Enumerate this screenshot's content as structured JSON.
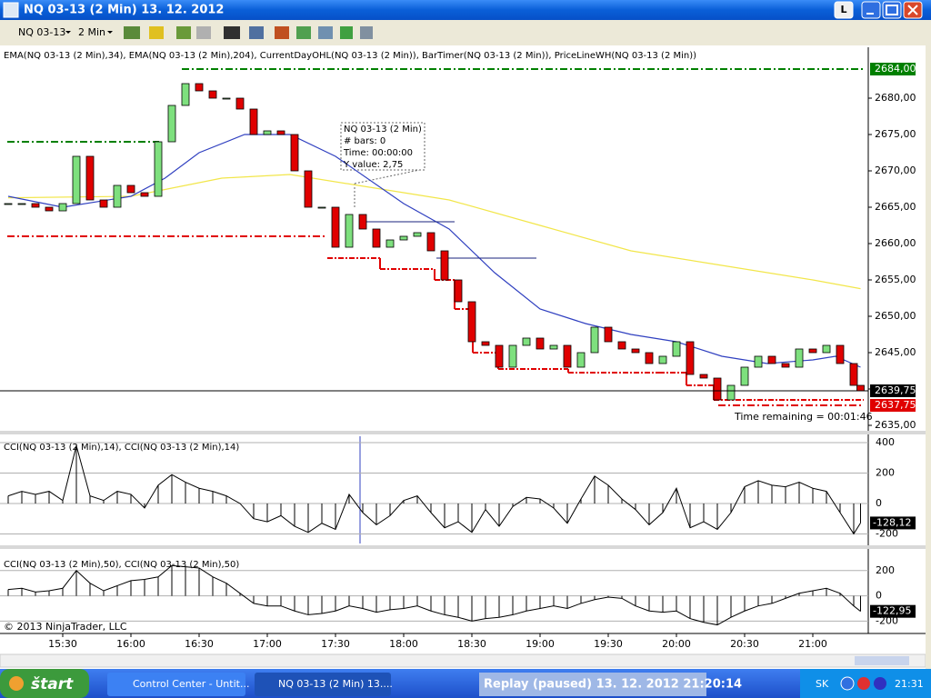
{
  "window": {
    "title": "NQ 03-13 (2 Min)  13. 12. 2012",
    "button": "L"
  },
  "toolbar": {
    "instrument": "NQ 03-13",
    "interval": "2 Min"
  },
  "chart_data": [
    {
      "type": "candlestick",
      "title": "EMA(NQ 03-13 (2 Min),34), EMA(NQ 03-13 (2 Min),204), CurrentDayOHL(NQ 03-13 (2 Min)), BarTimer(NQ 03-13 (2 Min)), PriceLineWH(NQ 03-13 (2 Min))",
      "xlim": [
        905.6,
        1283.2
      ],
      "ylim": [
        2634.25,
        2687
      ],
      "yticks": [
        {
          "value": 2635,
          "label": "2635,00"
        },
        {
          "value": 2640,
          "label": "2640,00"
        },
        {
          "value": 2645,
          "label": "2645,00"
        },
        {
          "value": 2650,
          "label": "2650,00"
        },
        {
          "value": 2655,
          "label": "2655,00"
        },
        {
          "value": 2660,
          "label": "2660,00"
        },
        {
          "value": 2665,
          "label": "2665,00"
        },
        {
          "value": 2670,
          "label": "2670,00"
        },
        {
          "value": 2675,
          "label": "2675,00"
        },
        {
          "value": 2680,
          "label": "2680,00"
        }
      ],
      "x": [
        906,
        912,
        918,
        924,
        930,
        936,
        942,
        948,
        954,
        960,
        966,
        972,
        978,
        984,
        990,
        996,
        1002,
        1008,
        1014,
        1020,
        1026,
        1032,
        1038,
        1044,
        1050,
        1056,
        1062,
        1068,
        1074,
        1080,
        1086,
        1092,
        1098,
        1104,
        1110,
        1116,
        1122,
        1128,
        1134,
        1140,
        1146,
        1152,
        1158,
        1164,
        1170,
        1176,
        1182,
        1188,
        1194,
        1200,
        1206,
        1212,
        1218,
        1224,
        1230,
        1236,
        1242,
        1248,
        1254,
        1260,
        1266,
        1272,
        1278,
        1281
      ],
      "values": [
        2665.5,
        2665.5,
        2665,
        2664.5,
        2665.5,
        2672,
        2666,
        2665,
        2668,
        2667,
        2666.5,
        2674,
        2679,
        2682,
        2681,
        2680,
        2680,
        2678.5,
        2675,
        2675.5,
        2675,
        2670,
        2665,
        2665,
        2659.5,
        2664,
        2662,
        2659.5,
        2660.5,
        2661,
        2661.5,
        2659,
        2655,
        2652,
        2646.5,
        2646,
        2643,
        2646,
        2647,
        2645.5,
        2646,
        2643,
        2645,
        2648.5,
        2646.5,
        2645.5,
        2645,
        2643.5,
        2644.5,
        2646.5,
        2642,
        2641.5,
        2638.5,
        2640.5,
        2643,
        2644.5,
        2643.5,
        2643,
        2645.5,
        2645,
        2646,
        2643.5,
        2640.5,
        2639.75
      ],
      "last_label": "2639,75",
      "up_color": "#7ee07e",
      "down_color": "#e00000",
      "lines": [
        {
          "color": "#f2e64a",
          "x": [
            906,
            960,
            1000,
            1030,
            1060,
            1100,
            1140,
            1180,
            1220,
            1260,
            1281
          ],
          "values": [
            2666.3,
            2666.5,
            2669,
            2669.5,
            2668,
            2666,
            2662.5,
            2659,
            2657,
            2655,
            2653.8
          ]
        },
        {
          "color": "#3040c0",
          "x": [
            906,
            930,
            960,
            975,
            990,
            1010,
            1030,
            1050,
            1080,
            1100,
            1120,
            1140,
            1160,
            1180,
            1200,
            1220,
            1240,
            1260,
            1270,
            1281
          ],
          "values": [
            2666.5,
            2665,
            2666.5,
            2669,
            2672.5,
            2675,
            2675,
            2672,
            2665.5,
            2662,
            2656,
            2651,
            2649,
            2647.5,
            2646.5,
            2644.5,
            2643.5,
            2644,
            2644.5,
            2643
          ]
        }
      ],
      "levels": [
        {
          "x": [
            982.4,
            1283.2
          ],
          "value": 2684,
          "label": "2684,00",
          "color": "#008000"
        },
        {
          "x": [
            905.6,
            972.4
          ],
          "value": 2674,
          "color": "#008000"
        },
        {
          "x": [
            905.6,
            1046.4
          ],
          "value": 2661,
          "color": "#e00000"
        },
        {
          "x": [
            1218.4,
            1282.4
          ],
          "value": 2637.75,
          "label": "2637,75",
          "color": "#e00000"
        }
      ],
      "lows": {
        "color": "#e00000",
        "x": [
          1046.4,
          1069.6,
          1093.6,
          1102.4,
          1110.4,
          1121.6,
          1152.4,
          1192.4,
          1204.4,
          1216.4,
          1282.4
        ],
        "values": [
          2658,
          2656.5,
          2655,
          2651,
          2645,
          2642.75,
          2642.25,
          2642.25,
          2640.5,
          2638.5,
          2638.5
        ]
      },
      "price_lines": [
        {
          "x": [
            1062.4,
            1102.4
          ],
          "value": 2663
        },
        {
          "x": [
            1094.4,
            1138.4
          ],
          "value": 2658
        }
      ],
      "timer": "Time remaining = 00:01:46",
      "tooltip": [
        "NQ 03-13 (2 Min)",
        "# bars:   0",
        "Time:     00:00:00",
        "Y value: 2,75"
      ]
    },
    {
      "type": "cci",
      "title": "CCI(NQ 03-13 (2 Min),14), CCI(NQ 03-13 (2 Min),14)",
      "xlim": [
        905.6,
        1283.2
      ],
      "ylim": [
        -275,
        454
      ],
      "yticks": [
        400,
        200,
        0,
        -200
      ],
      "x": [
        906,
        912,
        918,
        924,
        930,
        936,
        942,
        948,
        954,
        960,
        966,
        972,
        978,
        984,
        990,
        996,
        1002,
        1008,
        1014,
        1020,
        1026,
        1032,
        1038,
        1044,
        1050,
        1056,
        1062,
        1068,
        1074,
        1080,
        1086,
        1092,
        1098,
        1104,
        1110,
        1116,
        1122,
        1128,
        1134,
        1140,
        1146,
        1152,
        1158,
        1164,
        1170,
        1176,
        1182,
        1188,
        1194,
        1200,
        1206,
        1212,
        1218,
        1224,
        1230,
        1236,
        1242,
        1248,
        1254,
        1260,
        1266,
        1272,
        1278,
        1281
      ],
      "values": [
        50,
        80,
        60,
        80,
        20,
        380,
        50,
        20,
        80,
        60,
        -30,
        120,
        190,
        140,
        100,
        80,
        50,
        0,
        -100,
        -120,
        -80,
        -150,
        -190,
        -130,
        -170,
        60,
        -60,
        -140,
        -80,
        20,
        50,
        -60,
        -160,
        -120,
        -190,
        -40,
        -150,
        -20,
        40,
        30,
        -30,
        -130,
        30,
        180,
        120,
        30,
        -40,
        -140,
        -60,
        100,
        -160,
        -120,
        -170,
        -60,
        110,
        150,
        120,
        110,
        140,
        100,
        80,
        -60,
        -200,
        -128.12
      ],
      "last_label": "-128,12",
      "color": "#000000"
    },
    {
      "type": "cci",
      "title": "CCI(NQ 03-13 (2 Min),50), CCI(NQ 03-13 (2 Min),50)",
      "xlim": [
        905.6,
        1283.2
      ],
      "ylim": [
        -298,
        371
      ],
      "yticks": [
        200,
        0,
        -200
      ],
      "x": [
        906,
        912,
        918,
        924,
        930,
        936,
        942,
        948,
        954,
        960,
        966,
        972,
        978,
        984,
        990,
        996,
        1002,
        1008,
        1014,
        1020,
        1026,
        1032,
        1038,
        1044,
        1050,
        1056,
        1062,
        1068,
        1074,
        1080,
        1086,
        1092,
        1098,
        1104,
        1110,
        1116,
        1122,
        1128,
        1134,
        1140,
        1146,
        1152,
        1158,
        1164,
        1170,
        1176,
        1182,
        1188,
        1194,
        1200,
        1206,
        1212,
        1218,
        1224,
        1230,
        1236,
        1242,
        1248,
        1254,
        1260,
        1266,
        1272,
        1278,
        1281
      ],
      "values": [
        50,
        60,
        30,
        40,
        60,
        200,
        100,
        40,
        80,
        120,
        130,
        150,
        240,
        230,
        220,
        150,
        100,
        20,
        -60,
        -80,
        -80,
        -120,
        -150,
        -140,
        -120,
        -80,
        -100,
        -130,
        -110,
        -100,
        -80,
        -120,
        -150,
        -170,
        -200,
        -180,
        -170,
        -150,
        -120,
        -100,
        -80,
        -100,
        -60,
        -30,
        -10,
        -20,
        -80,
        -120,
        -130,
        -120,
        -180,
        -210,
        -230,
        -170,
        -120,
        -80,
        -60,
        -20,
        20,
        40,
        60,
        20,
        -80,
        -122.95
      ],
      "last_label": "-122,95",
      "color": "#000000",
      "copyright": "© 2013 NinjaTrader, LLC",
      "xticks": [
        {
          "value": 930,
          "label": "15:30"
        },
        {
          "value": 960,
          "label": "16:00"
        },
        {
          "value": 990,
          "label": "16:30"
        },
        {
          "value": 1020,
          "label": "17:00"
        },
        {
          "value": 1050,
          "label": "17:30"
        },
        {
          "value": 1080,
          "label": "18:00"
        },
        {
          "value": 1110,
          "label": "18:30"
        },
        {
          "value": 1140,
          "label": "19:00"
        },
        {
          "value": 1170,
          "label": "19:30"
        },
        {
          "value": 1200,
          "label": "20:00"
        },
        {
          "value": 1230,
          "label": "20:30"
        },
        {
          "value": 1260,
          "label": "21:00"
        }
      ]
    }
  ],
  "taskbar": {
    "start": "štart",
    "items": [
      "Control Center - Untit...",
      "NQ 03-13 (2 Min)  13...."
    ],
    "replay": "Replay (paused) 13. 12. 2012 21:20:14",
    "lang": "SK",
    "clock": "21:31"
  }
}
